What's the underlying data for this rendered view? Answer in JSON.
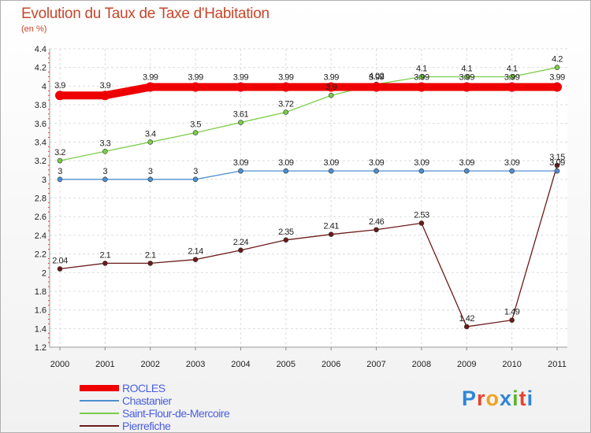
{
  "header": {
    "title": "Evolution du Taux de Taxe d'Habitation",
    "subtitle": "(en %)"
  },
  "logo": {
    "text": "Proxiti",
    "letters": [
      "P",
      "r",
      "o",
      "x",
      "i",
      "t",
      "i"
    ],
    "colors": [
      "#2e86d6",
      "#e8412c",
      "#f2a21b",
      "#2e86d6",
      "#5bb531",
      "#e8412c",
      "#2e86d6"
    ]
  },
  "chart_data": {
    "type": "line",
    "title": "Evolution du Taux de Taxe d'Habitation",
    "ylabel": "(en %)",
    "x": [
      "2000",
      "2001",
      "2002",
      "2003",
      "2004",
      "2005",
      "2006",
      "2007",
      "2008",
      "2009",
      "2010",
      "2011"
    ],
    "ylim": [
      1.2,
      4.4
    ],
    "yticks": [
      "1.2",
      "1.4",
      "1.6",
      "1.8",
      "2",
      "2.2",
      "2.4",
      "2.6",
      "2.8",
      "3",
      "3.2",
      "3.4",
      "3.6",
      "3.8",
      "4",
      "4.2",
      "4.4"
    ],
    "grid": true,
    "legend_position": "bottom-left",
    "series": [
      {
        "name": "ROCLES",
        "color": "#ee0000",
        "values": [
          3.9,
          3.9,
          3.99,
          3.99,
          3.99,
          3.99,
          3.99,
          3.99,
          3.99,
          3.99,
          3.99,
          3.99
        ],
        "labels": [
          "3.9",
          "3.9",
          "3.99",
          "3.99",
          "3.99",
          "3.99",
          "3.99",
          "3.99",
          "3.99",
          "3.99",
          "3.99",
          "3.99"
        ]
      },
      {
        "name": "Chastanier",
        "color": "#4f8fd0",
        "values": [
          3,
          3,
          3,
          3,
          3.09,
          3.09,
          3.09,
          3.09,
          3.09,
          3.09,
          3.09,
          3.09
        ],
        "labels": [
          "3",
          "3",
          "3",
          "3",
          "3.09",
          "3.09",
          "3.09",
          "3.09",
          "3.09",
          "3.09",
          "3.09",
          "3.09"
        ]
      },
      {
        "name": "Saint-Flour-de-Mercoire",
        "color": "#7ccd4a",
        "values": [
          3.2,
          3.3,
          3.4,
          3.5,
          3.61,
          3.72,
          3.9,
          4.02,
          4.1,
          4.1,
          4.1,
          4.2
        ],
        "labels": [
          "3.2",
          "3.3",
          "3.4",
          "3.5",
          "3.61",
          "3.72",
          "3.9",
          "4.02",
          "4.1",
          "4.1",
          "4.1",
          "4.2"
        ]
      },
      {
        "name": "Pierrefiche",
        "color": "#6b1a1a",
        "values": [
          2.04,
          2.1,
          2.1,
          2.14,
          2.24,
          2.35,
          2.41,
          2.46,
          2.53,
          1.42,
          1.49,
          3.15
        ],
        "labels": [
          "2.04",
          "2.1",
          "2.1",
          "2.14",
          "2.24",
          "2.35",
          "2.41",
          "2.46",
          "2.53",
          "1.42",
          "1.49",
          "3.15"
        ]
      }
    ]
  }
}
